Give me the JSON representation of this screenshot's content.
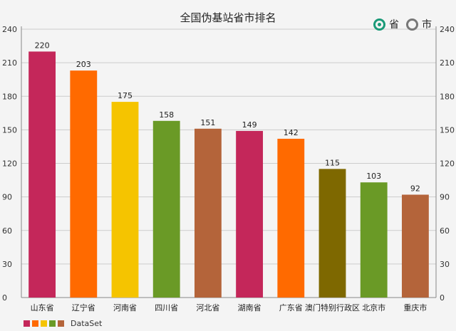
{
  "header": {
    "title": "全国伪基站省市排名",
    "radio_province": "省",
    "radio_city": "市",
    "selected": "province"
  },
  "colors": {
    "selected_radio": "#1a9a78",
    "unselected_radio": "#777777",
    "grid": "#cccccc",
    "axis": "#888888",
    "background": "#f4f4f4"
  },
  "chart_data": {
    "type": "bar",
    "title": "全国伪基站省市排名",
    "categories": [
      "山东省",
      "辽宁省",
      "河南省",
      "四川省",
      "河北省",
      "湖南省",
      "广东省",
      "澳门特别行政区",
      "北京市",
      "重庆市"
    ],
    "series": [
      {
        "name": "DataSet",
        "values": [
          220,
          203,
          175,
          158,
          151,
          149,
          142,
          115,
          103,
          92
        ],
        "colors": [
          "#c4275a",
          "#ff6a00",
          "#f5c400",
          "#6a9a26",
          "#b4643a",
          "#c4275a",
          "#ff6a00",
          "#7e6800",
          "#6a9a26",
          "#b4643a"
        ]
      }
    ],
    "ylim": [
      0,
      240
    ],
    "yticks": [
      0,
      30,
      60,
      90,
      120,
      150,
      180,
      210,
      240
    ],
    "y_axis_both_sides": true,
    "grid": true,
    "data_labels": true,
    "legend_position": "bottom-left",
    "legend_swatches": [
      "#c4275a",
      "#ff6a00",
      "#f5c400",
      "#6a9a26",
      "#b4643a"
    ]
  }
}
